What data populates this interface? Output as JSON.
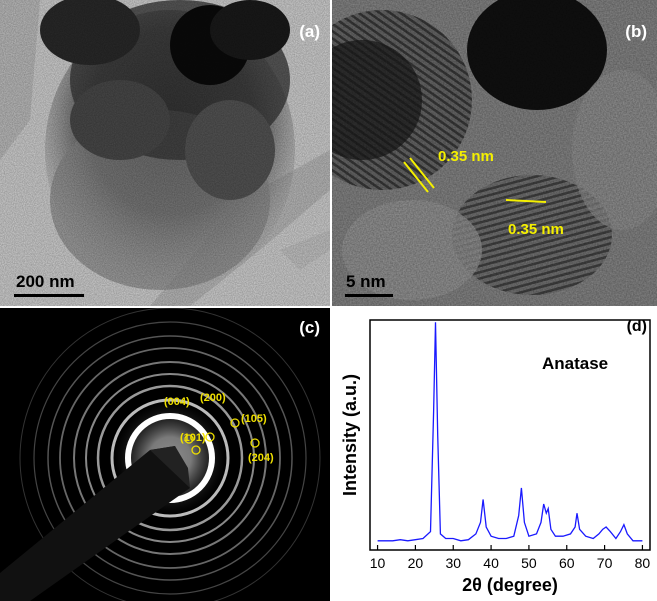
{
  "panels": {
    "a": {
      "label": "(a)",
      "scale_bar": "200 nm"
    },
    "b": {
      "label": "(b)",
      "scale_bar": "5 nm",
      "spacing_labels": [
        "0.35 nm",
        "0.35 nm"
      ]
    },
    "c": {
      "label": "(c)",
      "rings": [
        "(004)",
        "(200)",
        "(105)",
        "(101)",
        "(204)"
      ]
    },
    "d": {
      "label": "(d)",
      "legend": "Anatase"
    }
  },
  "chart_data": {
    "type": "line",
    "xlabel": "2θ (degree)",
    "ylabel": "Intensity (a.u.)",
    "xlim": [
      8,
      82
    ],
    "ylim": [
      0,
      1.0
    ],
    "xticks": [
      10,
      20,
      30,
      40,
      50,
      60,
      70,
      80
    ],
    "series": [
      {
        "color": "#1a1aff",
        "x": [
          10,
          12,
          14,
          16,
          18,
          20,
          22,
          24,
          24.8,
          25.3,
          25.9,
          26.6,
          28,
          30,
          32,
          34,
          36,
          37.2,
          37.9,
          38.7,
          40,
          42,
          44,
          46,
          47.3,
          48.0,
          48.8,
          50,
          52,
          53.2,
          53.9,
          54.6,
          55.1,
          55.8,
          57,
          59,
          61,
          62.2,
          62.7,
          63.4,
          65,
          67,
          68.5,
          69.5,
          70.4,
          71.5,
          73,
          74.2,
          75.1,
          76,
          77.5,
          79,
          80
        ],
        "y": [
          0.04,
          0.04,
          0.04,
          0.045,
          0.04,
          0.045,
          0.05,
          0.08,
          0.6,
          0.99,
          0.5,
          0.07,
          0.05,
          0.05,
          0.04,
          0.045,
          0.07,
          0.12,
          0.22,
          0.1,
          0.06,
          0.05,
          0.05,
          0.06,
          0.15,
          0.27,
          0.12,
          0.06,
          0.07,
          0.12,
          0.2,
          0.16,
          0.18,
          0.09,
          0.06,
          0.06,
          0.07,
          0.1,
          0.16,
          0.09,
          0.06,
          0.05,
          0.07,
          0.09,
          0.1,
          0.08,
          0.05,
          0.08,
          0.11,
          0.07,
          0.04,
          0.04,
          0.04
        ]
      }
    ]
  }
}
